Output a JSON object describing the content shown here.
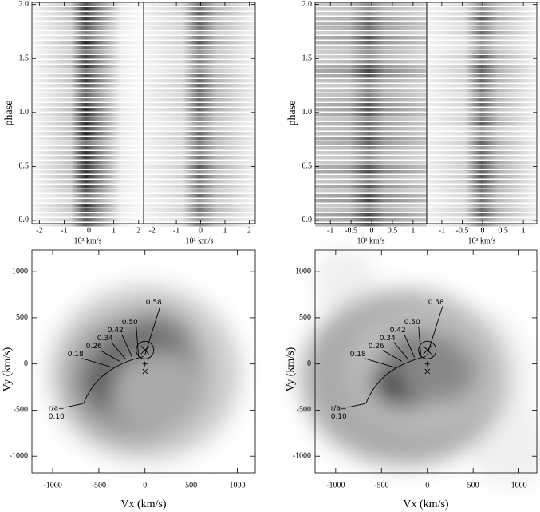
{
  "chart_data": [
    {
      "type": "trailed",
      "ylabel": "phase",
      "xlabel": "10³ km/s",
      "ylim": [
        -0.03,
        2.02
      ],
      "yticks": [
        {
          "value": 0,
          "label": "0.0"
        },
        0.5,
        {
          "value": 1,
          "label": "1.0"
        },
        1.5,
        {
          "value": 2,
          "label": "2.0"
        }
      ],
      "panels": [
        {
          "xlim": [
            -2.3,
            2.2
          ],
          "xticks": [
            -2,
            -1,
            0,
            1,
            2
          ]
        },
        {
          "xlim": [
            -2.35,
            2.25
          ],
          "xticks": [
            -2,
            -1,
            0,
            1,
            2
          ]
        }
      ]
    },
    {
      "type": "trailed",
      "ylabel": "phase",
      "xlabel": "10³ km/s",
      "ylim": [
        -0.03,
        2.02
      ],
      "yticks": [
        {
          "value": 0,
          "label": "0.0"
        },
        0.5,
        {
          "value": 1,
          "label": "1.0"
        },
        1.5,
        {
          "value": 2,
          "label": "2.0"
        }
      ],
      "panels": [
        {
          "xlim": [
            -1.37,
            1.33
          ],
          "xticks": [
            -1,
            -0.5,
            0,
            0.5,
            1
          ]
        },
        {
          "xlim": [
            -1.37,
            1.33
          ],
          "xticks": [
            -1,
            -0.5,
            0,
            0.5,
            1
          ]
        }
      ]
    },
    {
      "type": "doppler",
      "xlabel": "Vx (km/s)",
      "ylabel": "Vy (km/s)",
      "xlim": [
        -1225,
        1195
      ],
      "ylim": [
        -1180,
        1235
      ],
      "xticks": [
        -1000,
        -500,
        0,
        500,
        1000
      ],
      "yticks": [
        -1000,
        -500,
        0,
        500,
        1000
      ],
      "stream_prefix": "r/a=",
      "stream_labels": [
        "0.10",
        "0.18",
        "0.26",
        "0.34",
        "0.42",
        "0.50",
        "0.58"
      ]
    },
    {
      "type": "doppler",
      "xlabel": "Vx (km/s)",
      "ylabel": "Vy (km/s)",
      "xlim": [
        -1225,
        1195
      ],
      "ylim": [
        -1180,
        1235
      ],
      "xticks": [
        -1000,
        -500,
        0,
        500,
        1000
      ],
      "yticks": [
        -1000,
        -500,
        0,
        500,
        1000
      ],
      "stream_prefix": "r/a=",
      "stream_labels": [
        "0.10",
        "0.18",
        "0.26",
        "0.34",
        "0.42",
        "0.50",
        "0.58"
      ]
    }
  ]
}
